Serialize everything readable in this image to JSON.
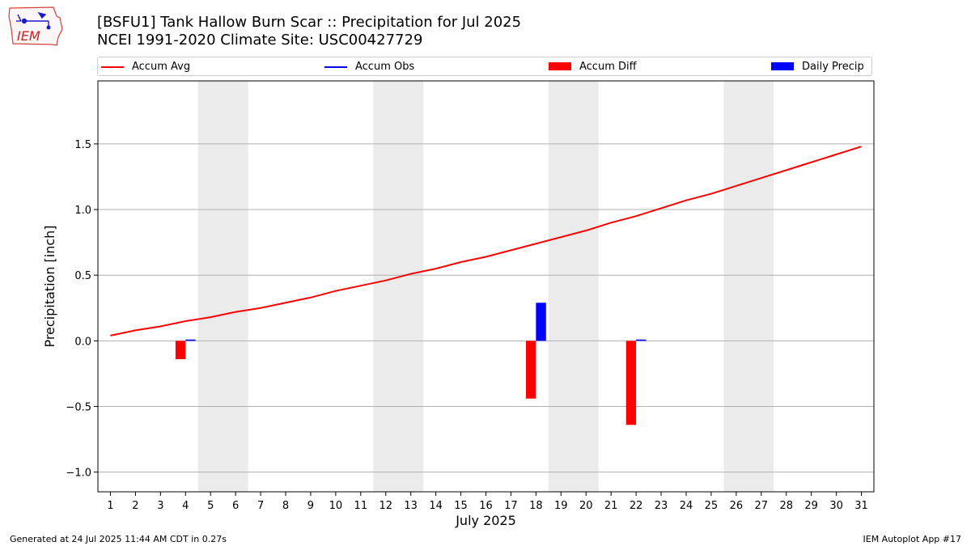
{
  "header": {
    "logo_text": "IEM",
    "title_line1": "[BSFU1] Tank Hallow Burn Scar :: Precipitation for Jul 2025",
    "title_line2": "NCEI 1991-2020 Climate Site: USC00427729"
  },
  "footer": {
    "generated": "Generated at 24 Jul 2025 11:44 AM CDT in 0.27s",
    "app": "IEM Autoplot App #17"
  },
  "legend": [
    {
      "label": "Accum Avg",
      "kind": "line",
      "color": "#ff0000"
    },
    {
      "label": "Accum Obs",
      "kind": "line",
      "color": "#0000ff"
    },
    {
      "label": "Accum Diff",
      "kind": "patch",
      "color": "#ff0000"
    },
    {
      "label": "Daily Precip",
      "kind": "patch",
      "color": "#0000ff"
    }
  ],
  "chart_data": {
    "type": "bar",
    "xlabel": "July 2025",
    "ylabel": "Precipitation [inch]",
    "xlim": [
      0.5,
      31.5
    ],
    "ylim": [
      -1.15,
      1.98
    ],
    "x_ticks": [
      1,
      2,
      3,
      4,
      5,
      6,
      7,
      8,
      9,
      10,
      11,
      12,
      13,
      14,
      15,
      16,
      17,
      18,
      19,
      20,
      21,
      22,
      23,
      24,
      25,
      26,
      27,
      28,
      29,
      30,
      31
    ],
    "y_ticks": [
      -1.0,
      -0.5,
      0.0,
      0.5,
      1.0,
      1.5
    ],
    "y_tick_labels": [
      "−1.0",
      "−0.5",
      "0.0",
      "0.5",
      "1.0",
      "1.5"
    ],
    "grid": "y",
    "legend_position": "top",
    "weekend_shading": [
      [
        5,
        6
      ],
      [
        12,
        13
      ],
      [
        19,
        20
      ],
      [
        26,
        27
      ]
    ],
    "accum_avg": {
      "name": "Accum Avg",
      "color": "#ff0000",
      "x": [
        1,
        2,
        3,
        4,
        5,
        6,
        7,
        8,
        9,
        10,
        11,
        12,
        13,
        14,
        15,
        16,
        17,
        18,
        19,
        20,
        21,
        22,
        23,
        24,
        25,
        26,
        27,
        28,
        29,
        30,
        31
      ],
      "values": [
        0.04,
        0.08,
        0.11,
        0.15,
        0.18,
        0.22,
        0.25,
        0.29,
        0.33,
        0.38,
        0.42,
        0.46,
        0.51,
        0.55,
        0.6,
        0.64,
        0.69,
        0.74,
        0.79,
        0.84,
        0.9,
        0.95,
        1.01,
        1.07,
        1.12,
        1.18,
        1.24,
        1.3,
        1.36,
        1.42,
        1.48
      ]
    },
    "accum_diff": {
      "name": "Accum Diff",
      "color": "#ff0000",
      "x": [
        4,
        18,
        22
      ],
      "values": [
        -0.14,
        -0.44,
        -0.64
      ]
    },
    "daily_precip": {
      "name": "Daily Precip",
      "color": "#0000ff",
      "x": [
        4,
        18,
        22
      ],
      "values": [
        0.01,
        0.29,
        0.01
      ]
    }
  }
}
